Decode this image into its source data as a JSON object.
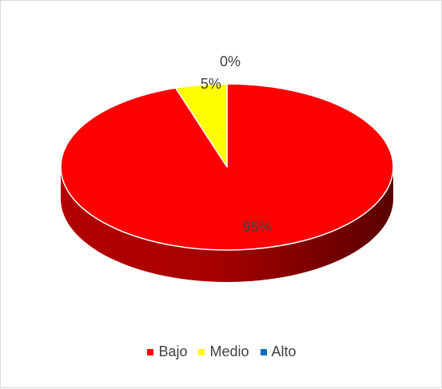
{
  "chart_data": {
    "type": "pie",
    "style": "3d",
    "categories": [
      "Bajo",
      "Medio",
      "Alto"
    ],
    "values": [
      95,
      5,
      0
    ],
    "labels": [
      "95%",
      "5%",
      "0%"
    ],
    "colors": [
      "#ff0000",
      "#ffff00",
      "#0070c0"
    ],
    "legend_position": "bottom"
  }
}
